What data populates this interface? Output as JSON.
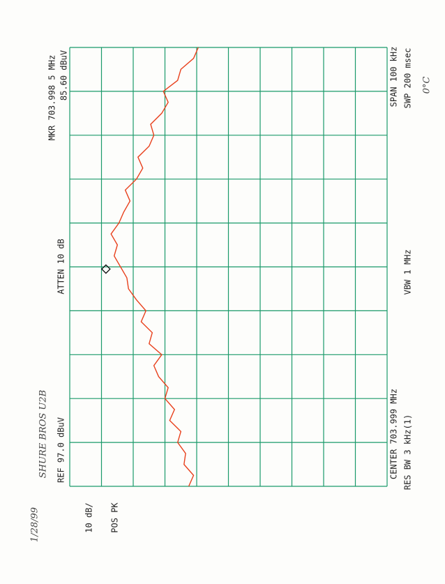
{
  "chart_data": {
    "type": "line",
    "x": [
      703.949,
      703.9515,
      703.954,
      703.9565,
      703.959,
      703.9615,
      703.964,
      703.9665,
      703.969,
      703.9715,
      703.974,
      703.9765,
      703.979,
      703.9815,
      703.984,
      703.9865,
      703.989,
      703.9915,
      703.994,
      703.9965,
      703.999,
      704.0015,
      704.004,
      704.0065,
      704.009,
      704.0115,
      704.014,
      704.0165,
      704.019,
      704.0215,
      704.024,
      704.0265,
      704.029,
      704.0315,
      704.034,
      704.0365,
      704.039,
      704.0415,
      704.044,
      704.0465,
      704.049
    ],
    "series": [
      {
        "name": "trace",
        "color": "#e8401c",
        "values": [
          59.5,
          58,
          61,
          60.5,
          63,
          62,
          65.5,
          64,
          67,
          66,
          69,
          70.5,
          68,
          72,
          71,
          74.5,
          73,
          76,
          78.5,
          79,
          81,
          83,
          82,
          84,
          81.5,
          80,
          78,
          79.5,
          76,
          74,
          75.5,
          72,
          70.5,
          71.5,
          68,
          66,
          67.5,
          63,
          62,
          58,
          56.5
        ]
      }
    ],
    "marker": {
      "x": 703.9985,
      "y": 85.6
    },
    "xlim": [
      703.949,
      704.049
    ],
    "xticks": [
      703.949,
      703.959,
      703.969,
      703.979,
      703.989,
      703.999,
      704.009,
      704.019,
      704.029,
      704.039,
      704.049
    ],
    "ylim": [
      -3,
      97
    ],
    "yticks": [
      -3,
      7,
      17,
      27,
      37,
      47,
      57,
      67,
      77,
      87,
      97
    ],
    "grid": true,
    "grid_color": "#1a9a6a",
    "annotations": {
      "ref": "REF 97.0 dBuV",
      "atten": "ATTEN 10 dB",
      "mkr": "MKR 703.998 5 MHz",
      "mkr_level": "85.60 dBuV",
      "scale": "10 dB/",
      "detector": "POS PK",
      "center": "CENTER 703.999 MHz",
      "span": "SPAN 100 kHz",
      "rbw": "RES BW 3 kHz(1)",
      "vbw": "VBW 1 MHz",
      "sweep": "SWP 200 msec"
    },
    "handwritten": {
      "date": "1/28/99",
      "device": "SHURE BROS   U2B",
      "temperature": "0°C"
    }
  }
}
